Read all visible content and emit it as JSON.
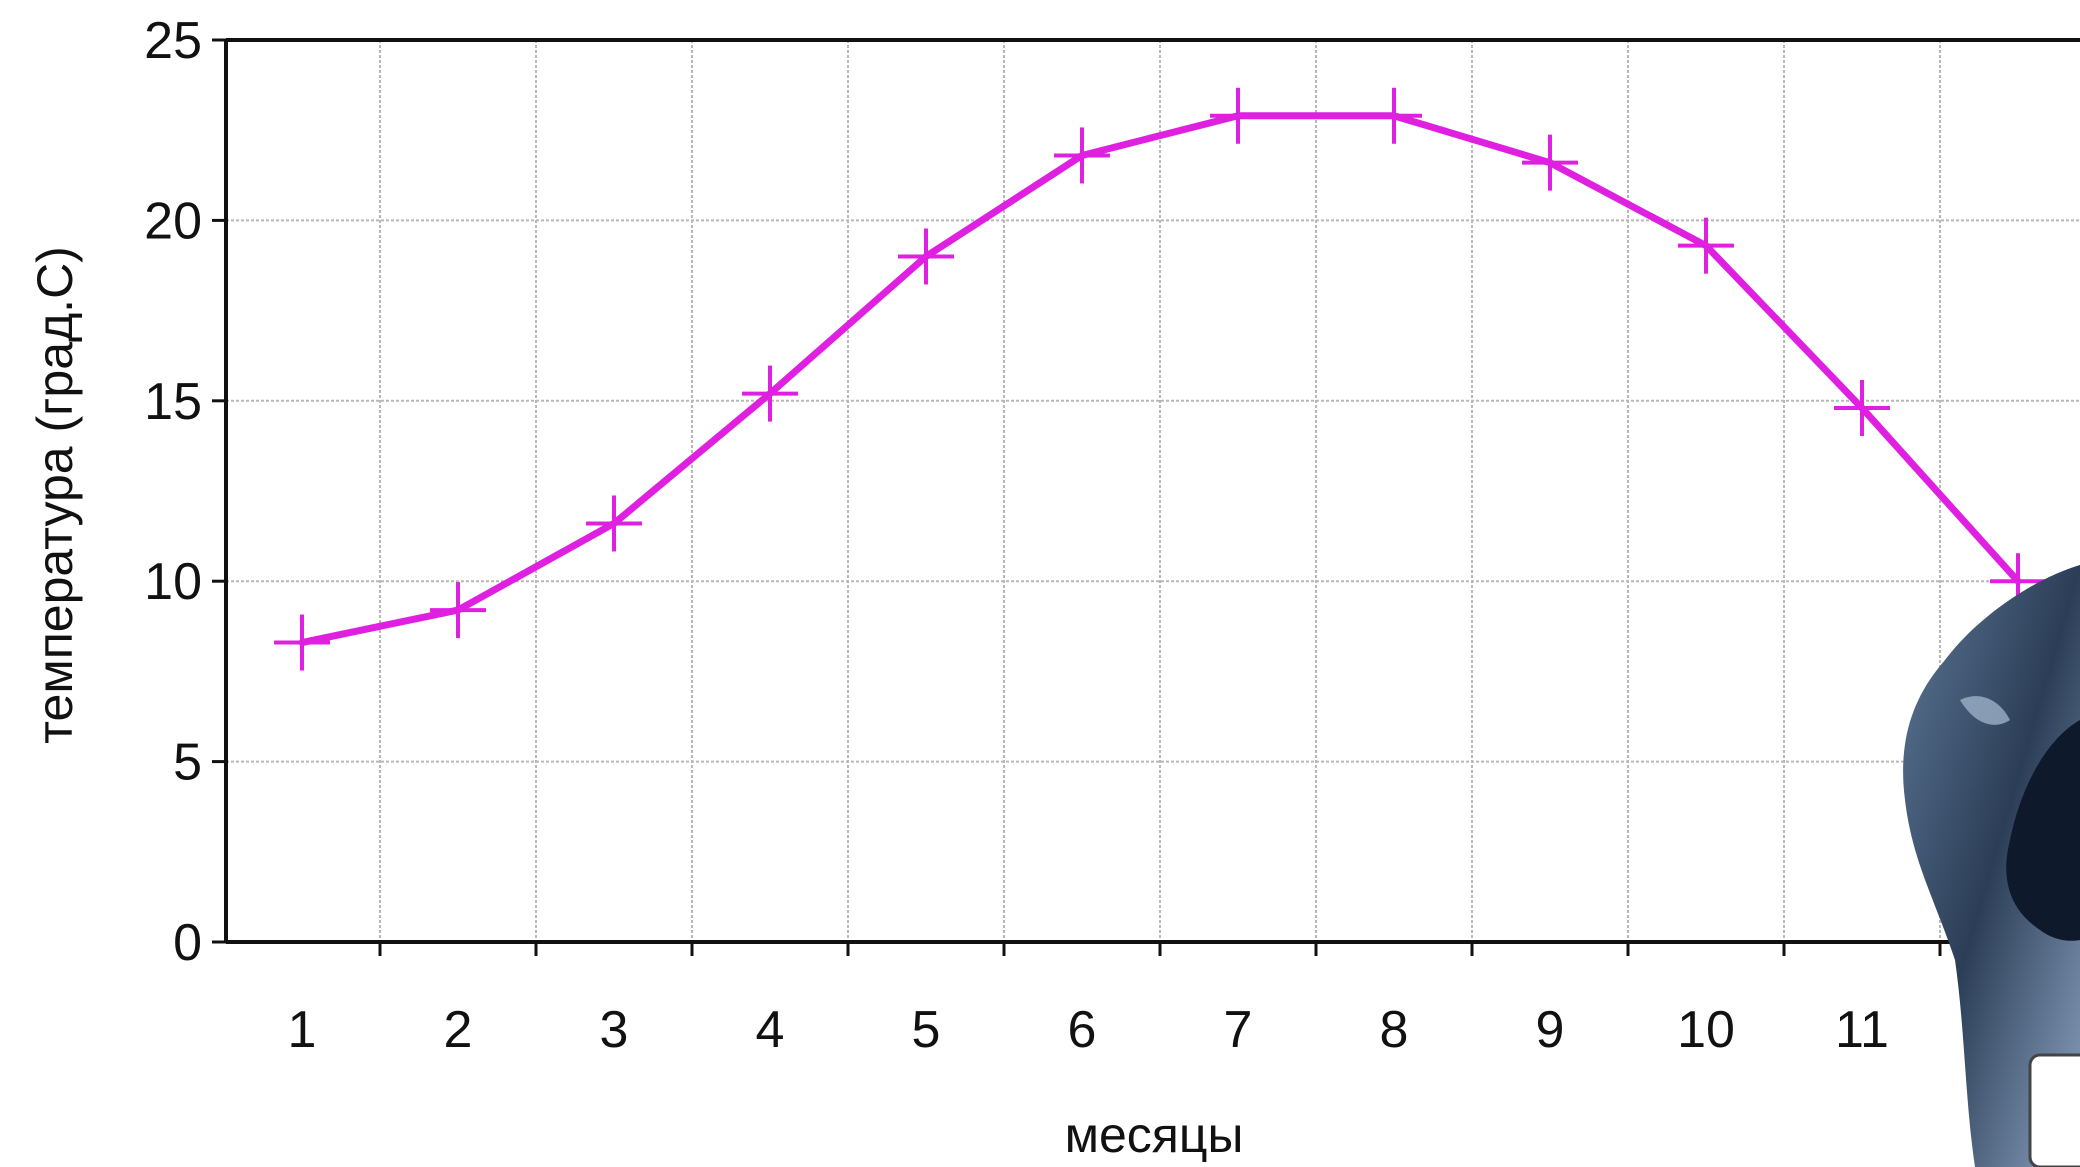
{
  "chart_data": {
    "type": "line",
    "xlabel": "месяцы",
    "ylabel": "температура (град.С)",
    "x": [
      1,
      2,
      3,
      4,
      5,
      6,
      7,
      8,
      9,
      10,
      11,
      12
    ],
    "x_tick_labels": [
      "1",
      "2",
      "3",
      "4",
      "5",
      "6",
      "7",
      "8",
      "9",
      "10",
      "11"
    ],
    "y_ticks": [
      0,
      5,
      10,
      15,
      20,
      25
    ],
    "ylim": [
      0,
      25
    ],
    "grid": true,
    "series": [
      {
        "values": [
          8.3,
          9.2,
          11.6,
          15.2,
          19.0,
          21.8,
          22.9,
          22.9,
          21.6,
          19.3,
          14.8,
          10.0
        ],
        "color": "#e020e0",
        "marker": "plus"
      }
    ]
  },
  "overlay": {
    "description_icon": "blue-mascot-figure"
  }
}
